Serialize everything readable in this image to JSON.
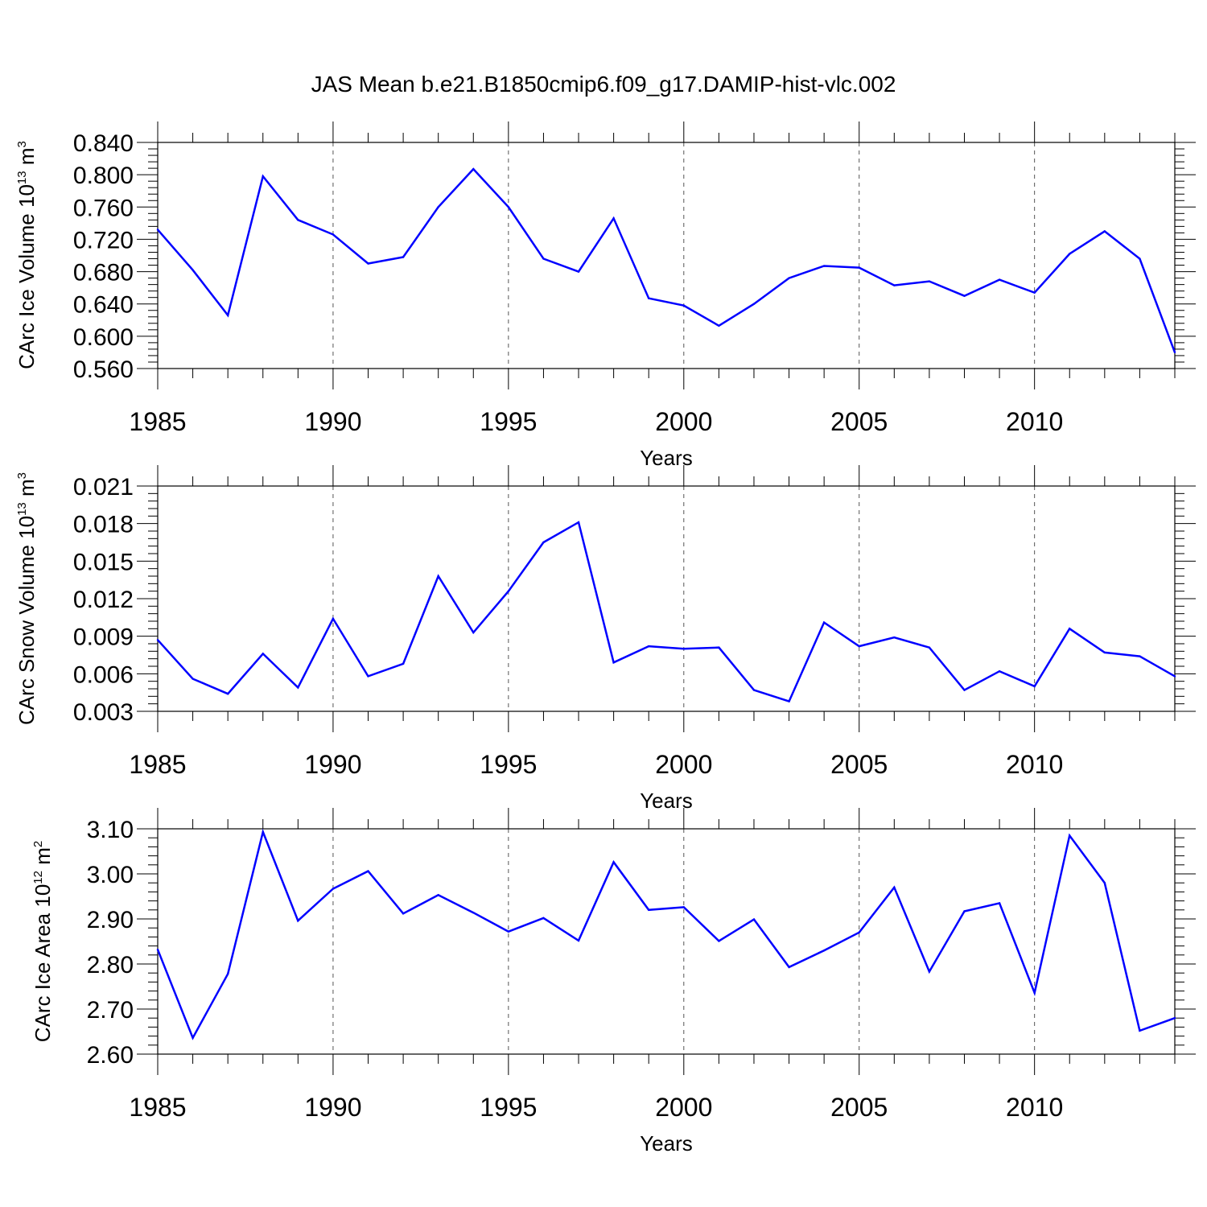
{
  "figure": {
    "title": "JAS Mean b.e21.B1850cmip6.f09_g17.DAMIP-hist-vlc.002"
  },
  "chart_data": [
    {
      "type": "line",
      "ylabel": "CArc Ice Volume",
      "yunit_base": "10",
      "yunit_exp": "13",
      "yunit_tail": "m",
      "yunit_tail_exp": "3",
      "xlabel": "Years",
      "xlim": [
        1985,
        2014
      ],
      "ylim": [
        0.56,
        0.84
      ],
      "xticks": [
        1985,
        1990,
        1995,
        2000,
        2005,
        2010
      ],
      "yticks": [
        "0.560",
        "0.600",
        "0.640",
        "0.680",
        "0.720",
        "0.760",
        "0.800",
        "0.840"
      ],
      "grid": "vertical dashed at major x ticks",
      "line_color": "#0000ff",
      "x": [
        1985,
        1986,
        1987,
        1988,
        1989,
        1990,
        1991,
        1992,
        1993,
        1994,
        1995,
        1996,
        1997,
        1998,
        1999,
        2000,
        2001,
        2002,
        2003,
        2004,
        2005,
        2006,
        2007,
        2008,
        2009,
        2010,
        2011,
        2012,
        2013,
        2014
      ],
      "y": [
        0.732,
        0.682,
        0.626,
        0.798,
        0.744,
        0.726,
        0.69,
        0.698,
        0.76,
        0.807,
        0.76,
        0.696,
        0.68,
        0.746,
        0.647,
        0.638,
        0.613,
        0.64,
        0.672,
        0.687,
        0.685,
        0.663,
        0.668,
        0.65,
        0.67,
        0.654,
        0.702,
        0.73,
        0.696,
        0.58
      ]
    },
    {
      "type": "line",
      "ylabel": "CArc Snow Volume",
      "yunit_base": "10",
      "yunit_exp": "13",
      "yunit_tail": "m",
      "yunit_tail_exp": "3",
      "xlabel": "Years",
      "xlim": [
        1985,
        2014
      ],
      "ylim": [
        0.003,
        0.021
      ],
      "xticks": [
        1985,
        1990,
        1995,
        2000,
        2005,
        2010
      ],
      "yticks": [
        "0.003",
        "0.006",
        "0.009",
        "0.012",
        "0.015",
        "0.018",
        "0.021"
      ],
      "grid": "vertical dashed at major x ticks",
      "line_color": "#0000ff",
      "x": [
        1985,
        1986,
        1987,
        1988,
        1989,
        1990,
        1991,
        1992,
        1993,
        1994,
        1995,
        1996,
        1997,
        1998,
        1999,
        2000,
        2001,
        2002,
        2003,
        2004,
        2005,
        2006,
        2007,
        2008,
        2009,
        2010,
        2011,
        2012,
        2013,
        2014
      ],
      "y": [
        0.0087,
        0.0056,
        0.0044,
        0.0076,
        0.0049,
        0.0104,
        0.0058,
        0.0068,
        0.0138,
        0.0093,
        0.0126,
        0.0165,
        0.0181,
        0.0069,
        0.0082,
        0.008,
        0.0081,
        0.0047,
        0.0038,
        0.0101,
        0.0082,
        0.0089,
        0.0081,
        0.0047,
        0.0062,
        0.005,
        0.0096,
        0.0077,
        0.0074,
        0.0058
      ]
    },
    {
      "type": "line",
      "ylabel": "CArc Ice Area",
      "yunit_base": "10",
      "yunit_exp": "12",
      "yunit_tail": "m",
      "yunit_tail_exp": "2",
      "xlabel": "Years",
      "xlim": [
        1985,
        2014
      ],
      "ylim": [
        2.6,
        3.1
      ],
      "xticks": [
        1985,
        1990,
        1995,
        2000,
        2005,
        2010
      ],
      "yticks": [
        "2.60",
        "2.70",
        "2.80",
        "2.90",
        "3.00",
        "3.10"
      ],
      "grid": "vertical dashed at major x ticks",
      "line_color": "#0000ff",
      "x": [
        1985,
        1986,
        1987,
        1988,
        1989,
        1990,
        1991,
        1992,
        1993,
        1994,
        1995,
        1996,
        1997,
        1998,
        1999,
        2000,
        2001,
        2002,
        2003,
        2004,
        2005,
        2006,
        2007,
        2008,
        2009,
        2010,
        2011,
        2012,
        2013,
        2014
      ],
      "y": [
        2.832,
        2.636,
        2.778,
        3.093,
        2.896,
        2.967,
        3.006,
        2.912,
        2.953,
        2.914,
        2.872,
        2.902,
        2.852,
        3.026,
        2.92,
        2.926,
        2.851,
        2.899,
        2.793,
        2.83,
        2.87,
        2.97,
        2.783,
        2.917,
        2.935,
        2.736,
        3.085,
        2.98,
        2.652,
        2.68
      ]
    }
  ]
}
